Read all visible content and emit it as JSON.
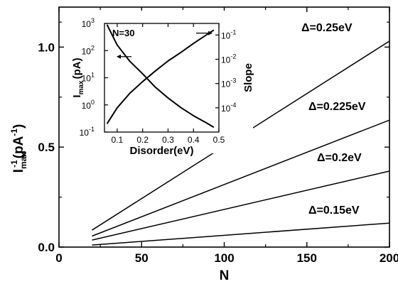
{
  "chart_data": [
    {
      "type": "line",
      "xlabel": "N",
      "ylabel": "I",
      "ylabel_sub": "max",
      "ylabel_sup": "-1",
      "ylabel_unit": "(pA",
      "ylabel_unit_sup": "-1",
      "ylabel_unit_close": ")",
      "xlim": [
        0,
        200
      ],
      "ylim": [
        0.0,
        1.2
      ],
      "xticks": [
        0,
        50,
        100,
        150,
        200
      ],
      "xtick_labels": [
        "0",
        "50",
        "100",
        "150",
        "200"
      ],
      "yticks": [
        0.0,
        0.5,
        1.0
      ],
      "ytick_labels": [
        "0.0",
        "0.5",
        "1.0"
      ],
      "grid": false,
      "series": [
        {
          "name": "Δ=0.25eV",
          "x": [
            20,
            200
          ],
          "y": [
            0.085,
            1.03
          ]
        },
        {
          "name": "Δ=0.225eV",
          "x": [
            20,
            200
          ],
          "y": [
            0.055,
            0.635
          ]
        },
        {
          "name": "Δ=0.2eV",
          "x": [
            20,
            200
          ],
          "y": [
            0.035,
            0.38
          ]
        },
        {
          "name": "Δ=0.15eV",
          "x": [
            20,
            200
          ],
          "y": [
            0.01,
            0.12
          ]
        }
      ]
    },
    {
      "type": "line",
      "annotation": "N=30",
      "xlabel": "Disorder(eV)",
      "ylabel": "I",
      "ylabel_sub": "max",
      "ylabel_unit": "(pA)",
      "y2label": "Slope",
      "xlim": [
        0.05,
        0.5
      ],
      "xticks": [
        0.1,
        0.2,
        0.3,
        0.4,
        0.5
      ],
      "xtick_labels": [
        "0.1",
        "0.2",
        "0.3",
        "0.4",
        "0.5"
      ],
      "ylim": [
        0.1,
        1000
      ],
      "yscale": "log",
      "yticks": [
        0.1,
        1,
        10,
        100,
        1000
      ],
      "ytick_base": "10",
      "ytick_exps": [
        "-1",
        "0",
        "1",
        "2",
        "3"
      ],
      "y2lim": [
        1e-05,
        0.3
      ],
      "y2scale": "log",
      "y2ticks": [
        0.0001,
        0.001,
        0.01,
        0.1
      ],
      "y2tick_exps": [
        "-4",
        "-3",
        "-2",
        "-1"
      ],
      "series": [
        {
          "name": "Imax",
          "axis": "left",
          "x": [
            0.06,
            0.1,
            0.15,
            0.2,
            0.25,
            0.3,
            0.35,
            0.4,
            0.45,
            0.48
          ],
          "y": [
            900,
            160,
            40,
            14,
            4.5,
            1.8,
            0.8,
            0.4,
            0.22,
            0.15
          ]
        },
        {
          "name": "Slope",
          "axis": "right",
          "x": [
            0.06,
            0.1,
            0.15,
            0.2,
            0.25,
            0.3,
            0.35,
            0.4,
            0.45,
            0.48
          ],
          "y": [
            2.2e-05,
            0.0001,
            0.0004,
            0.0012,
            0.0033,
            0.0085,
            0.019,
            0.045,
            0.1,
            0.16
          ]
        }
      ]
    }
  ]
}
